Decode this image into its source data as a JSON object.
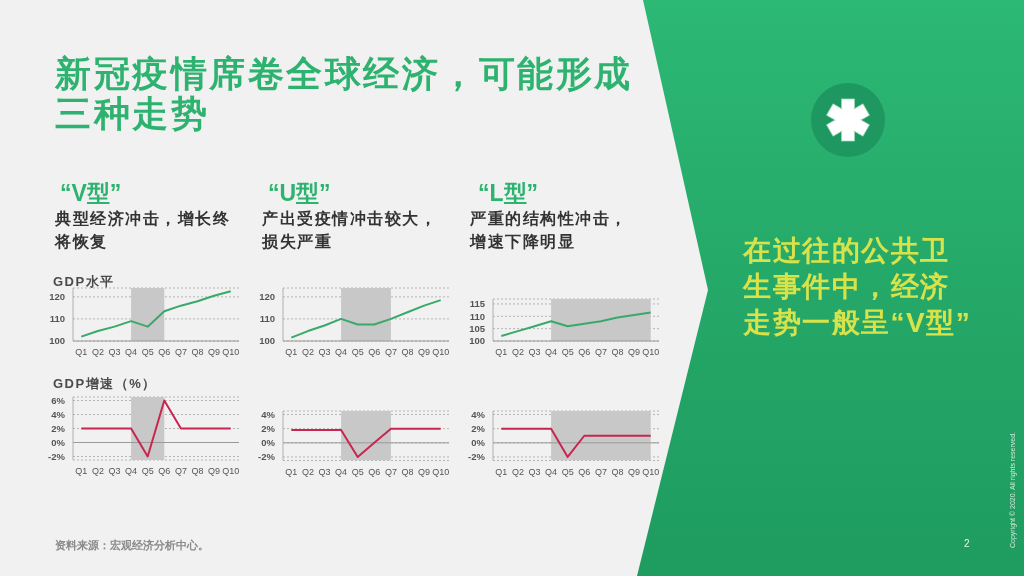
{
  "chart_data": [
    {
      "type": "other",
      "title": "新冠疫情席卷全球经济，可能形成三种走势",
      "annotations": [
        "在过往的公共卫生事件中，经济走势一般呈“V型”",
        "资料来源：宏观经济分析中心。",
        "Copyright © 2020. All rights reserved.",
        "2"
      ]
    },
    {
      "type": "line",
      "title": "“V型”",
      "subtitle": "典型经济冲击，增长终将恢复",
      "ylabel": "GDP水平",
      "categories": [
        "Q1",
        "Q2",
        "Q3",
        "Q4",
        "Q5",
        "Q6",
        "Q7",
        "Q8",
        "Q9",
        "Q10"
      ],
      "series": [
        {
          "color": "#38a96b",
          "values": [
            102,
            104.5,
            106.5,
            109,
            106.5,
            113.5,
            116,
            118,
            120.5,
            122.5
          ]
        }
      ],
      "ylim": [
        100,
        124
      ],
      "yticks": [
        100,
        110,
        120
      ],
      "grid": "y",
      "bands": [
        {
          "axis": "x",
          "from": "Q4",
          "to": "Q6",
          "color": "#c8c8c8"
        }
      ]
    },
    {
      "type": "line",
      "title": "“U型”",
      "subtitle": "产出受疫情冲击较大，损失严重",
      "categories": [
        "Q1",
        "Q2",
        "Q3",
        "Q4",
        "Q5",
        "Q6",
        "Q7",
        "Q8",
        "Q9",
        "Q10"
      ],
      "series": [
        {
          "color": "#38a96b",
          "values": [
            101.5,
            104.5,
            107,
            110,
            107.5,
            107.5,
            110,
            113,
            116,
            118.5
          ]
        }
      ],
      "ylim": [
        100,
        124
      ],
      "yticks": [
        100,
        110,
        120
      ],
      "grid": "y",
      "bands": [
        {
          "axis": "x",
          "from": "Q4",
          "to": "Q7",
          "color": "#c8c8c8"
        }
      ]
    },
    {
      "type": "line",
      "title": "“L型”",
      "subtitle": "严重的结构性冲击，增速下降明显",
      "categories": [
        "Q1",
        "Q2",
        "Q3",
        "Q4",
        "Q5",
        "Q6",
        "Q7",
        "Q8",
        "Q9",
        "Q10"
      ],
      "series": [
        {
          "color": "#38a96b",
          "values": [
            102,
            104,
            106,
            108,
            106,
            107,
            108,
            109.5,
            110.5,
            111.5
          ]
        }
      ],
      "ylim": [
        100,
        117
      ],
      "yticks": [
        100,
        105,
        110,
        115
      ],
      "grid": "y",
      "bands": [
        {
          "axis": "x",
          "from": "Q4",
          "to": "Q10",
          "color": "#c8c8c8"
        }
      ]
    },
    {
      "type": "line",
      "ylabel": "GDP增速（%）",
      "categories": [
        "Q1",
        "Q2",
        "Q3",
        "Q4",
        "Q5",
        "Q6",
        "Q7",
        "Q8",
        "Q9",
        "Q10"
      ],
      "series": [
        {
          "color": "#c8264f",
          "values": [
            2,
            2,
            2,
            2,
            -2,
            6,
            2,
            2,
            2,
            2
          ]
        }
      ],
      "ylim": [
        -2.5,
        6.5
      ],
      "yticks": [
        {
          "value": -2,
          "label": "-2%"
        },
        {
          "value": 0,
          "label": "0%"
        },
        {
          "value": 2,
          "label": "2%"
        },
        {
          "value": 4,
          "label": "4%"
        },
        {
          "value": 6,
          "label": "6%"
        }
      ],
      "grid": "y",
      "bands": [
        {
          "axis": "x",
          "from": "Q4",
          "to": "Q6",
          "color": "#c8c8c8"
        }
      ]
    },
    {
      "type": "line",
      "categories": [
        "Q1",
        "Q2",
        "Q3",
        "Q4",
        "Q5",
        "Q6",
        "Q7",
        "Q8",
        "Q9",
        "Q10"
      ],
      "series": [
        {
          "color": "#c8264f",
          "values": [
            1.8,
            1.8,
            1.8,
            1.8,
            -2,
            0,
            2,
            2,
            2,
            2
          ]
        }
      ],
      "ylim": [
        -2.5,
        4.5
      ],
      "yticks": [
        {
          "value": -2,
          "label": "-2%"
        },
        {
          "value": 0,
          "label": "0%"
        },
        {
          "value": 2,
          "label": "2%"
        },
        {
          "value": 4,
          "label": "4%"
        }
      ],
      "grid": "y",
      "bands": [
        {
          "axis": "x",
          "from": "Q4",
          "to": "Q7",
          "color": "#c8c8c8"
        }
      ]
    },
    {
      "type": "line",
      "categories": [
        "Q1",
        "Q2",
        "Q3",
        "Q4",
        "Q5",
        "Q6",
        "Q7",
        "Q8",
        "Q9",
        "Q10"
      ],
      "series": [
        {
          "color": "#c8264f",
          "values": [
            2,
            2,
            2,
            2,
            -2,
            1,
            1,
            1,
            1,
            1
          ]
        }
      ],
      "ylim": [
        -2.5,
        4.5
      ],
      "yticks": [
        {
          "value": -2,
          "label": "-2%"
        },
        {
          "value": 0,
          "label": "0%"
        },
        {
          "value": 2,
          "label": "2%"
        },
        {
          "value": 4,
          "label": "4%"
        }
      ],
      "grid": "y",
      "bands": [
        {
          "axis": "x",
          "from": "Q4",
          "to": "Q10",
          "color": "#c8c8c8"
        }
      ]
    }
  ]
}
